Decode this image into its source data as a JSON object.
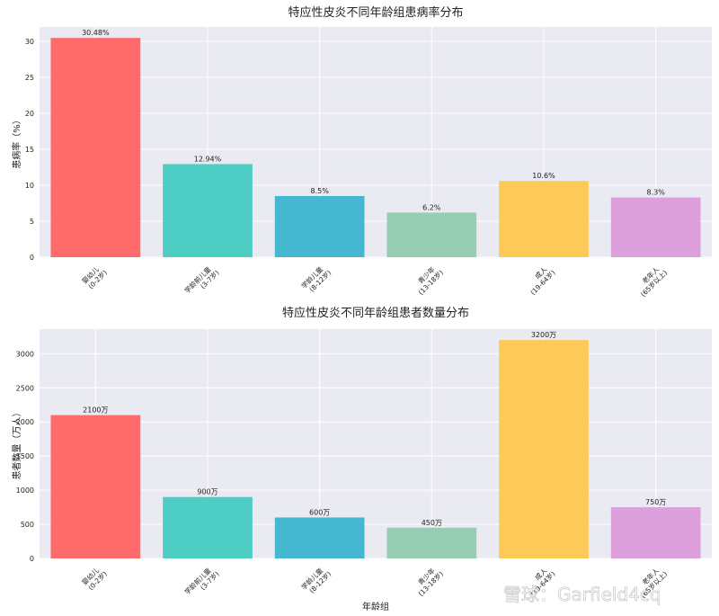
{
  "watermark": "雪球：Garfield4cq",
  "chart_data": [
    {
      "type": "bar",
      "title": "特应性皮炎不同年龄组患病率分布",
      "xlabel": "",
      "ylabel": "患病率（%）",
      "categories": [
        "婴幼儿\n(0-2岁)",
        "学龄前儿童\n(3-7岁)",
        "学龄儿童\n(8-12岁)",
        "青少年\n(13-18岁)",
        "成人\n(19-64岁)",
        "老年人\n(65岁以上)"
      ],
      "values": [
        30.48,
        12.94,
        8.5,
        6.2,
        10.6,
        8.3
      ],
      "data_labels": [
        "30.48%",
        "12.94%",
        "8.5%",
        "6.2%",
        "10.6%",
        "8.3%"
      ],
      "colors": [
        "#ff6b6b",
        "#4ecdc4",
        "#45b7d1",
        "#96ceb4",
        "#feca57",
        "#dda0dd"
      ],
      "ylim": [
        0,
        32
      ],
      "yticks": [
        0,
        5,
        10,
        15,
        20,
        25,
        30
      ],
      "grid": true,
      "background": "#eaeaf2"
    },
    {
      "type": "bar",
      "title": "特应性皮炎不同年龄组患者数量分布",
      "xlabel": "年龄组",
      "ylabel": "患者数量（万人）",
      "categories": [
        "婴幼儿\n(0-2岁)",
        "学龄前儿童\n(3-7岁)",
        "学龄儿童\n(8-12岁)",
        "青少年\n(13-18岁)",
        "成人\n(19-64岁)",
        "老年人\n(65岁以上)"
      ],
      "values": [
        2100,
        900,
        600,
        450,
        3200,
        750
      ],
      "data_labels": [
        "2100万",
        "900万",
        "600万",
        "450万",
        "3200万",
        "750万"
      ],
      "colors": [
        "#ff6b6b",
        "#4ecdc4",
        "#45b7d1",
        "#96ceb4",
        "#feca57",
        "#dda0dd"
      ],
      "ylim": [
        0,
        3360
      ],
      "yticks": [
        0,
        500,
        1000,
        1500,
        2000,
        2500,
        3000
      ],
      "grid": true,
      "background": "#eaeaf2"
    }
  ]
}
